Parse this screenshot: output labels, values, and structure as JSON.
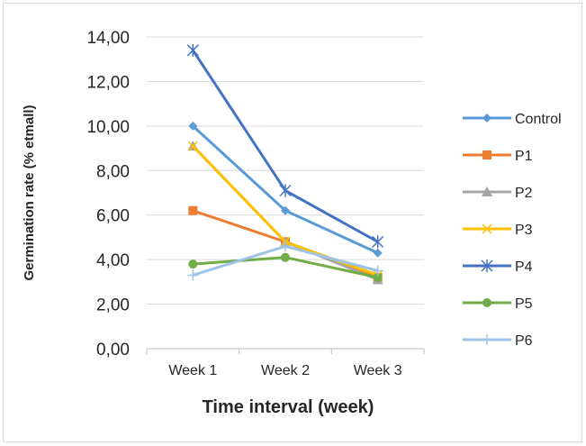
{
  "chart_data": {
    "type": "line",
    "categories": [
      "Week 1",
      "Week 2",
      "Week 3"
    ],
    "xlabel": "Time interval (week)",
    "ylabel": "Germination rate (% etmall)",
    "ylim": [
      0,
      14
    ],
    "ytick_step": 2,
    "ytick_labels": [
      "0,00",
      "2,00",
      "4,00",
      "6,00",
      "8,00",
      "10,00",
      "12,00",
      "14,00"
    ],
    "grid": "horizontal",
    "legend_position": "right",
    "series": [
      {
        "name": "Control",
        "values": [
          10.0,
          6.2,
          4.3
        ],
        "color": "#5B9BD5",
        "marker": "diamond"
      },
      {
        "name": "P1",
        "values": [
          6.2,
          4.8,
          3.2
        ],
        "color": "#ED7D31",
        "marker": "square"
      },
      {
        "name": "P2",
        "values": [
          9.1,
          4.8,
          3.1
        ],
        "color": "#A5A5A5",
        "marker": "triangle"
      },
      {
        "name": "P3",
        "values": [
          9.1,
          4.8,
          3.3
        ],
        "color": "#FFC000",
        "marker": "x"
      },
      {
        "name": "P4",
        "values": [
          13.4,
          7.1,
          4.8
        ],
        "color": "#4472C4",
        "marker": "star"
      },
      {
        "name": "P5",
        "values": [
          3.8,
          4.1,
          3.2
        ],
        "color": "#70AD47",
        "marker": "circle"
      },
      {
        "name": "P6",
        "values": [
          3.3,
          4.6,
          3.5
        ],
        "color": "#9DC3E6",
        "marker": "plus"
      }
    ]
  }
}
